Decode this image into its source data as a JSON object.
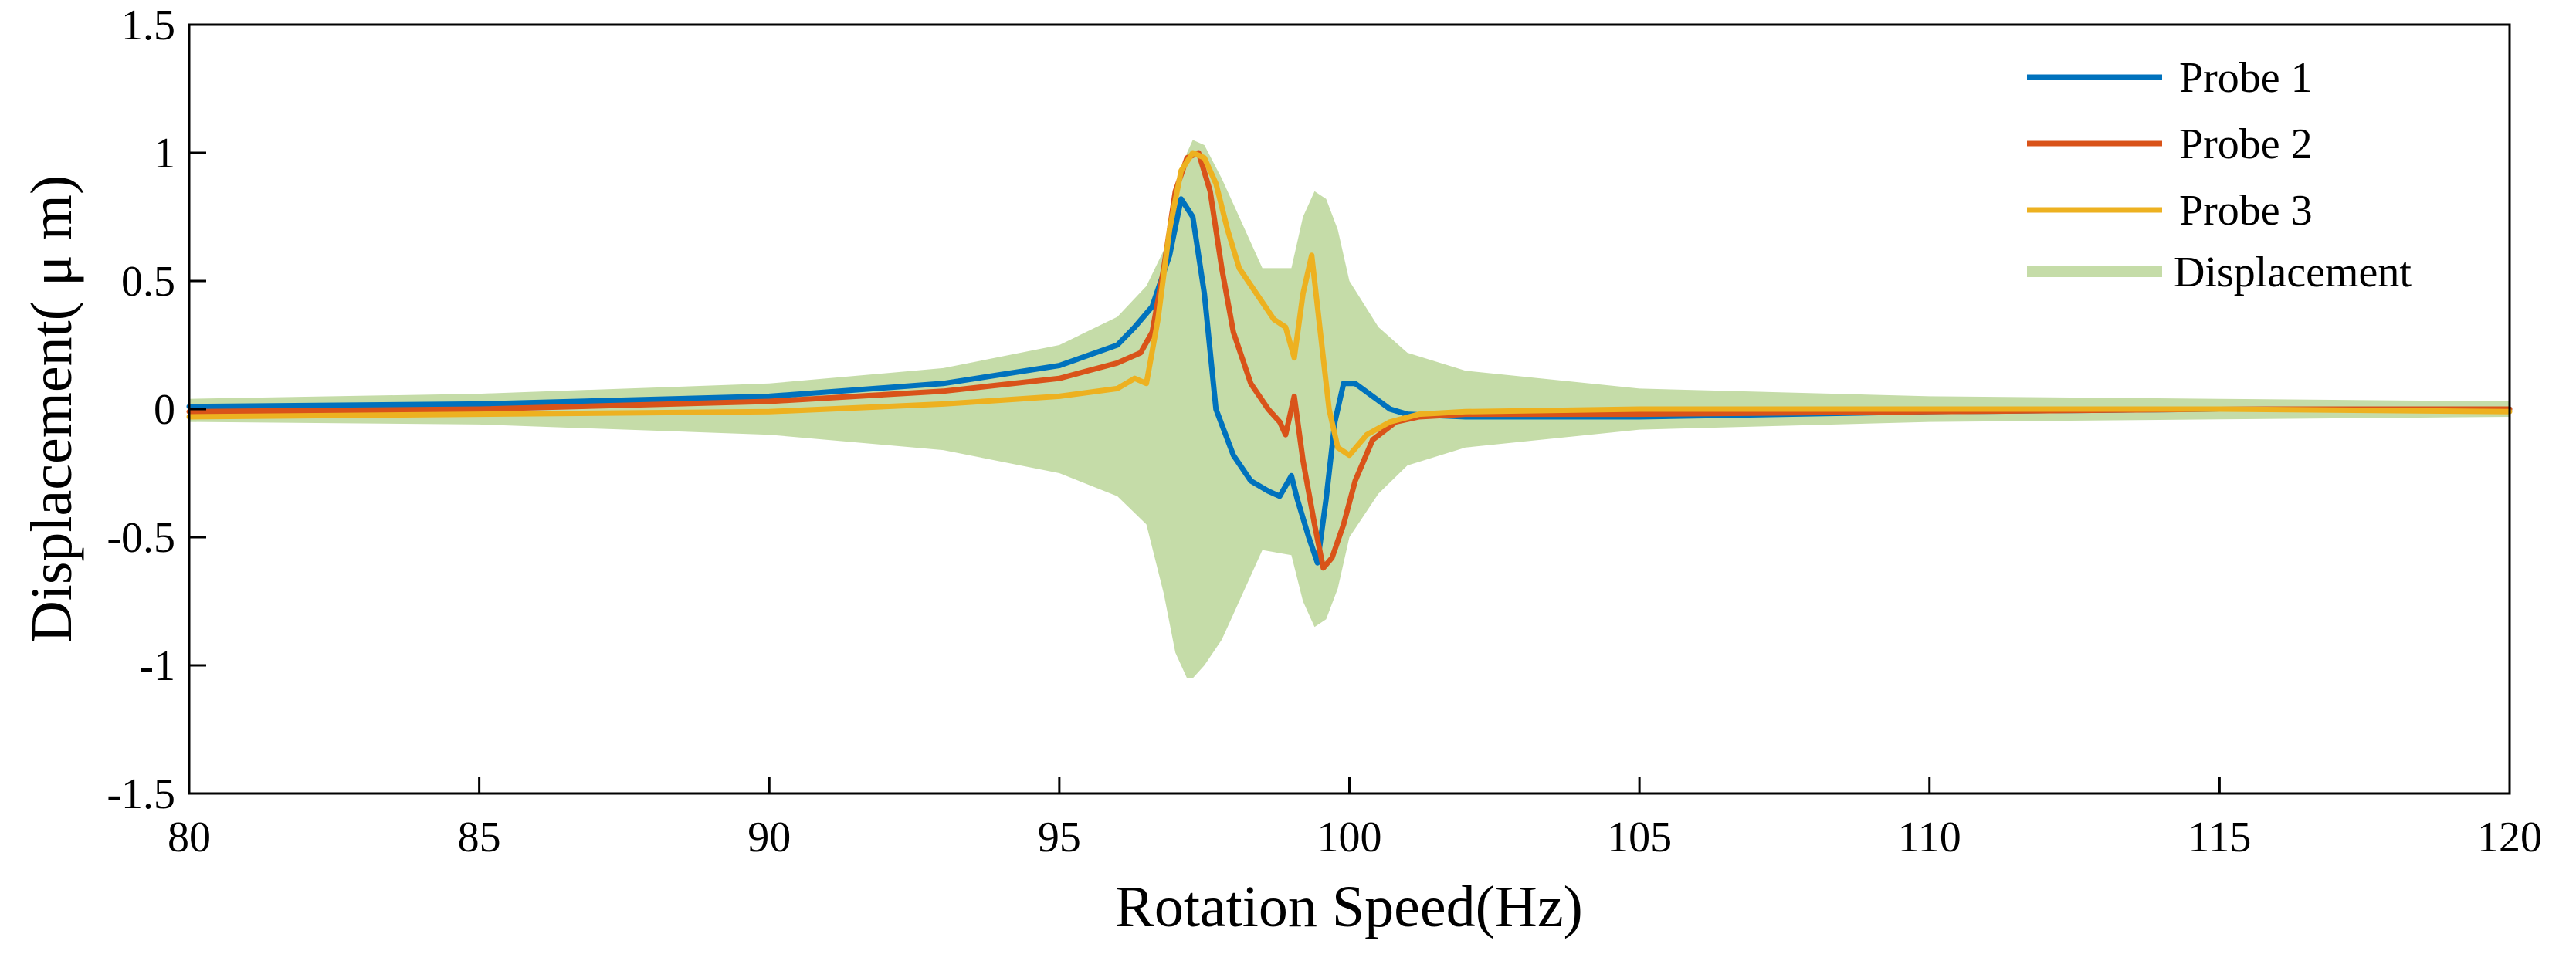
{
  "chart_data": {
    "type": "line",
    "title": "",
    "xlabel": "Rotation Speed(Hz)",
    "ylabel": "Displacement( μ m)",
    "xlim": [
      80,
      120
    ],
    "ylim": [
      -1.5,
      1.5
    ],
    "xticks": [
      80,
      85,
      90,
      95,
      100,
      105,
      110,
      115,
      120
    ],
    "yticks": [
      -1.5,
      -1,
      -0.5,
      0,
      0.5,
      1,
      1.5
    ],
    "ytick_labels": [
      "-1.5",
      "-1",
      "-0.5",
      "0",
      "0.5",
      "1",
      "1.5"
    ],
    "grid": false,
    "legend_position": "top-right",
    "colors": {
      "probe1": "#0072BD",
      "probe2": "#D95319",
      "probe3": "#EDB120",
      "displacement": "#C5DCA8"
    },
    "envelope": {
      "name": "Displacement",
      "x": [
        80,
        85,
        90,
        93,
        95,
        96,
        96.5,
        96.8,
        97,
        97.2,
        97.3,
        97.5,
        97.8,
        98,
        98.5,
        99,
        99.2,
        99.4,
        99.6,
        99.8,
        100,
        100.5,
        101,
        102,
        105,
        110,
        115,
        120
      ],
      "upper": [
        0.04,
        0.06,
        0.1,
        0.16,
        0.25,
        0.36,
        0.48,
        0.62,
        0.84,
        1.0,
        1.05,
        1.03,
        0.9,
        0.8,
        0.55,
        0.55,
        0.75,
        0.85,
        0.82,
        0.7,
        0.5,
        0.32,
        0.22,
        0.15,
        0.08,
        0.05,
        0.04,
        0.03
      ],
      "lower": [
        -0.05,
        -0.06,
        -0.1,
        -0.16,
        -0.25,
        -0.34,
        -0.45,
        -0.72,
        -0.95,
        -1.05,
        -1.05,
        -1.0,
        -0.9,
        -0.8,
        -0.55,
        -0.57,
        -0.75,
        -0.85,
        -0.82,
        -0.7,
        -0.5,
        -0.33,
        -0.22,
        -0.15,
        -0.08,
        -0.05,
        -0.04,
        -0.03
      ]
    },
    "series": [
      {
        "name": "Probe 1",
        "x": [
          80,
          85,
          90,
          93,
          95,
          96,
          96.3,
          96.6,
          96.9,
          97.1,
          97.3,
          97.5,
          97.7,
          98,
          98.3,
          98.6,
          98.8,
          98.9,
          99,
          99.1,
          99.3,
          99.45,
          99.6,
          99.75,
          99.9,
          100.1,
          100.4,
          100.7,
          101,
          102,
          105,
          110,
          115,
          120
        ],
        "values": [
          0.01,
          0.02,
          0.05,
          0.1,
          0.17,
          0.25,
          0.32,
          0.4,
          0.6,
          0.82,
          0.75,
          0.45,
          0.0,
          -0.18,
          -0.28,
          -0.32,
          -0.34,
          -0.3,
          -0.26,
          -0.35,
          -0.5,
          -0.6,
          -0.35,
          -0.05,
          0.1,
          0.1,
          0.05,
          0.0,
          -0.02,
          -0.03,
          -0.03,
          -0.01,
          0.0,
          0.0
        ]
      },
      {
        "name": "Probe 2",
        "x": [
          80,
          85,
          90,
          93,
          95,
          96,
          96.4,
          96.6,
          96.8,
          97,
          97.2,
          97.4,
          97.6,
          97.8,
          98,
          98.3,
          98.6,
          98.8,
          98.9,
          99.05,
          99.2,
          99.4,
          99.55,
          99.7,
          99.9,
          100.1,
          100.4,
          100.8,
          101.2,
          102,
          105,
          110,
          115,
          120
        ],
        "values": [
          -0.01,
          0.0,
          0.03,
          0.07,
          0.12,
          0.18,
          0.22,
          0.3,
          0.55,
          0.85,
          0.98,
          1.0,
          0.85,
          0.55,
          0.3,
          0.1,
          0.0,
          -0.05,
          -0.1,
          0.05,
          -0.2,
          -0.45,
          -0.62,
          -0.58,
          -0.45,
          -0.28,
          -0.12,
          -0.05,
          -0.03,
          -0.02,
          -0.02,
          -0.01,
          0.0,
          0.0
        ]
      },
      {
        "name": "Probe 3",
        "x": [
          80,
          85,
          90,
          93,
          95,
          96,
          96.3,
          96.5,
          96.7,
          96.9,
          97.1,
          97.3,
          97.5,
          97.7,
          97.9,
          98.1,
          98.4,
          98.7,
          98.9,
          99.05,
          99.2,
          99.35,
          99.5,
          99.65,
          99.8,
          100,
          100.3,
          100.7,
          101.2,
          102,
          105,
          110,
          115,
          120
        ],
        "values": [
          -0.03,
          -0.02,
          -0.01,
          0.02,
          0.05,
          0.08,
          0.12,
          0.1,
          0.35,
          0.7,
          0.93,
          1.0,
          0.98,
          0.88,
          0.7,
          0.55,
          0.45,
          0.35,
          0.32,
          0.2,
          0.45,
          0.6,
          0.3,
          0.0,
          -0.15,
          -0.18,
          -0.1,
          -0.05,
          -0.02,
          -0.01,
          0.0,
          0.0,
          0.0,
          -0.01
        ]
      }
    ]
  }
}
